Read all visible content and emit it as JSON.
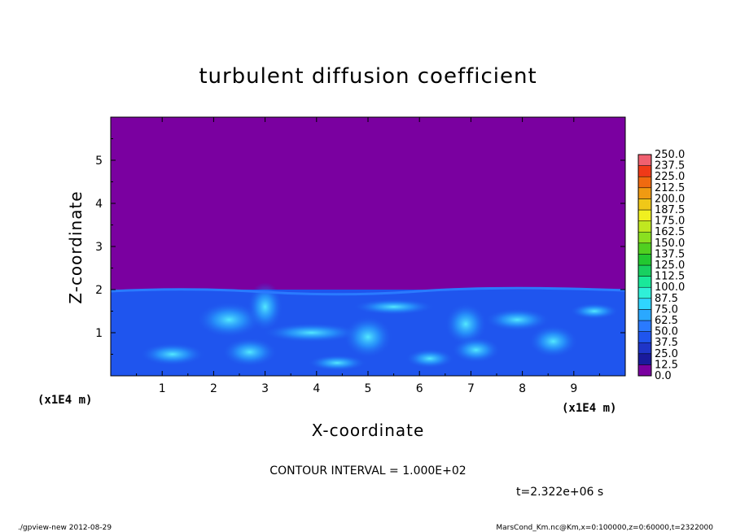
{
  "chart_data": {
    "type": "heatmap",
    "title": "turbulent diffusion coefficient",
    "xlabel": "X-coordinate",
    "ylabel": "Z-coordinate",
    "x_unit": "(x1E4 m)",
    "y_unit": "(x1E4 m)",
    "x_ticks": [
      "1",
      "2",
      "3",
      "4",
      "5",
      "6",
      "7",
      "8",
      "9"
    ],
    "y_ticks": [
      "1",
      "2",
      "3",
      "4",
      "5"
    ],
    "xlim": [
      0,
      10
    ],
    "ylim": [
      0,
      6
    ],
    "colorbar_levels": [
      "0.0",
      "12.5",
      "25.0",
      "37.5",
      "50.0",
      "62.5",
      "75.0",
      "87.5",
      "100.0",
      "112.5",
      "125.0",
      "137.5",
      "150.0",
      "162.5",
      "175.0",
      "187.5",
      "200.0",
      "212.5",
      "225.0",
      "237.5",
      "250.0"
    ],
    "colorbar_colors": [
      "#7a00a0",
      "#1a1a9c",
      "#1f35c8",
      "#1f55ee",
      "#2a7aff",
      "#2aa8ff",
      "#2fd5ff",
      "#2ff0d8",
      "#19e89a",
      "#18d060",
      "#22c830",
      "#50d020",
      "#8ae020",
      "#c0e820",
      "#f0f020",
      "#f0c818",
      "#f09a12",
      "#f06a10",
      "#f03a18",
      "#f06070"
    ],
    "upper_region_color": "#7a00a0",
    "boundary_height": 2.0,
    "contour_interval": "CONTOUR INTERVAL = 1.000E+02",
    "time_label": "t=2.322e+06 s"
  },
  "footer": {
    "left": "./gpview-new  2012-08-29",
    "right": "MarsCond_Km.nc@Km,x=0:100000,z=0:60000,t=2322000"
  }
}
